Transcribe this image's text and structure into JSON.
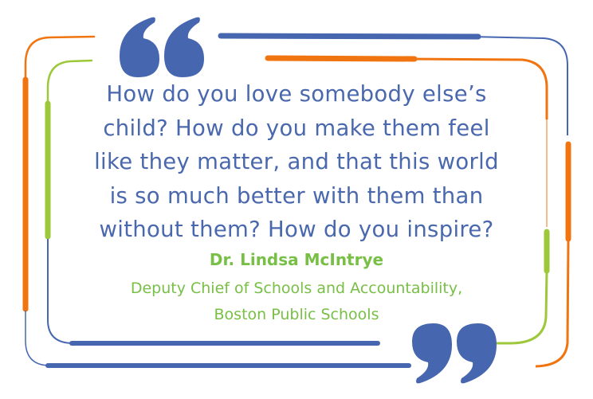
{
  "quote": {
    "lines": [
      "How do you love somebody else’s",
      "child? How do you make them feel",
      "like they matter, and that this world",
      "is so much better with them than",
      "without them? How do you inspire?"
    ]
  },
  "attribution": {
    "name": "Dr. Lindsa McIntrye",
    "title_lines": [
      "Deputy Chief of Schools and Accountability,",
      "Boston Public Schools"
    ]
  },
  "colors": {
    "blue": "#4667b0",
    "orange": "#f07511",
    "green": "#9dc83a",
    "text_green": "#78bf45"
  },
  "icons": [
    "open-quote-icon",
    "close-quote-icon"
  ]
}
